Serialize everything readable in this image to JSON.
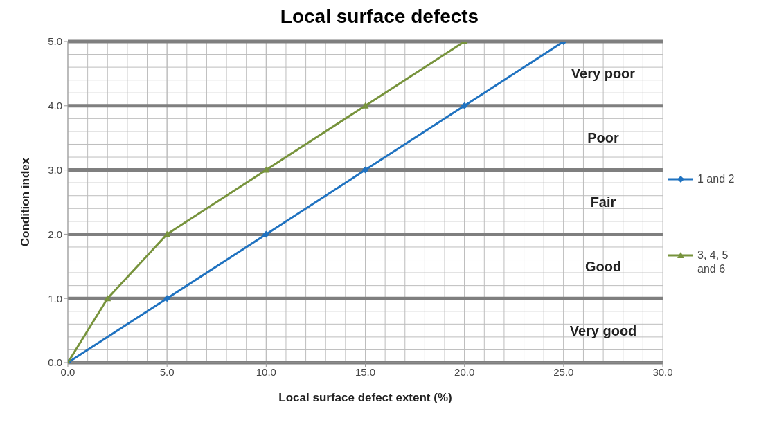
{
  "chart_data": {
    "type": "line",
    "title": "Local surface defects",
    "xlabel": "Local surface defect extent (%)",
    "ylabel": "Condition index",
    "series": [
      {
        "name": "1 and 2",
        "color": "#1f72c0",
        "marker": "diamond",
        "x": [
          0,
          5,
          10,
          15,
          20,
          25
        ],
        "values": [
          0,
          1,
          2,
          3,
          4,
          5
        ]
      },
      {
        "name": "3, 4, 5 and 6",
        "color": "#77933c",
        "marker": "triangle",
        "x": [
          0,
          2,
          5,
          10,
          15,
          20
        ],
        "values": [
          0,
          1,
          2,
          3,
          4,
          5
        ]
      }
    ],
    "xlim": [
      0,
      30
    ],
    "xticks": [
      {
        "value": 0,
        "label": "0.0"
      },
      {
        "value": 5,
        "label": "5.0"
      },
      {
        "value": 10,
        "label": "10.0"
      },
      {
        "value": 15,
        "label": "15.0"
      },
      {
        "value": 20,
        "label": "20.0"
      },
      {
        "value": 25,
        "label": "25.0"
      },
      {
        "value": 30,
        "label": "30.0"
      }
    ],
    "ylim": [
      0,
      5
    ],
    "yticks": [
      {
        "value": 0,
        "label": "0.0"
      },
      {
        "value": 1,
        "label": "1.0"
      },
      {
        "value": 2,
        "label": "2.0"
      },
      {
        "value": 3,
        "label": "3.0"
      },
      {
        "value": 4,
        "label": "4.0"
      },
      {
        "value": 5,
        "label": "5.0"
      }
    ],
    "annotations": [
      "Very poor",
      "Poor",
      "Fair",
      "Good",
      "Very good"
    ],
    "grid": true,
    "legend": "right",
    "line_style": "solid"
  }
}
